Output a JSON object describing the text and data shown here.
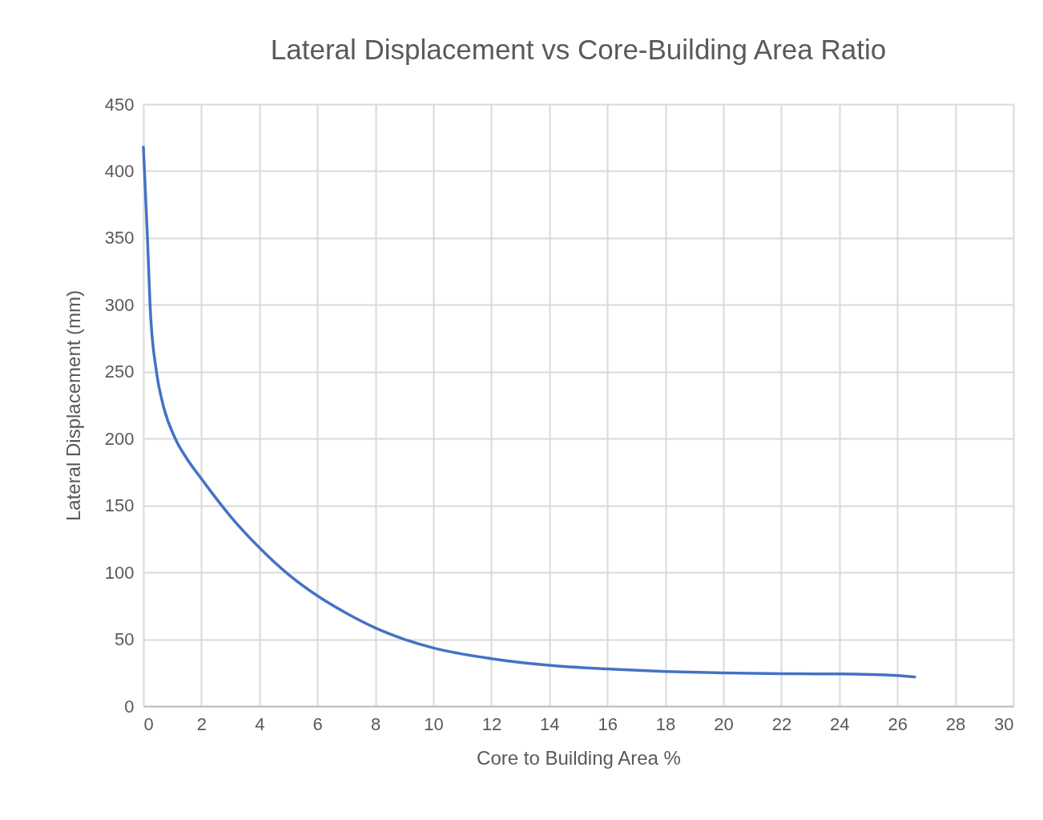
{
  "chart_data": {
    "type": "line",
    "title": "Lateral Displacement vs Core-Building Area Ratio",
    "xlabel": "Core to Building Area %",
    "ylabel": "Lateral Displacement (mm)",
    "x": [
      0,
      0.14,
      0.23,
      0.45,
      0.67,
      1.1,
      1.5,
      2,
      3,
      4,
      5,
      6,
      7,
      8,
      9,
      10,
      12,
      14,
      16,
      18,
      20,
      22,
      24,
      26,
      26.6
    ],
    "series": [
      {
        "color": "#4472c4",
        "values": [
          418,
          350,
          300,
          250,
          226,
          200,
          185,
          170,
          142,
          118.5,
          98.5,
          82.5,
          69.5,
          58.5,
          50,
          43.5,
          35.5,
          30.5,
          27.8,
          25.9,
          24.8,
          24.3,
          24.1,
          22.9,
          21.8
        ]
      }
    ],
    "xlim": [
      0,
      30
    ],
    "xticks": [
      0,
      2,
      4,
      6,
      8,
      10,
      12,
      14,
      16,
      18,
      20,
      22,
      24,
      26,
      28,
      30
    ],
    "ylim": [
      0,
      450
    ],
    "yticks": [
      0,
      50,
      100,
      150,
      200,
      250,
      300,
      350,
      400,
      450
    ],
    "grid": true,
    "marker": "none",
    "line_style": "solid"
  }
}
